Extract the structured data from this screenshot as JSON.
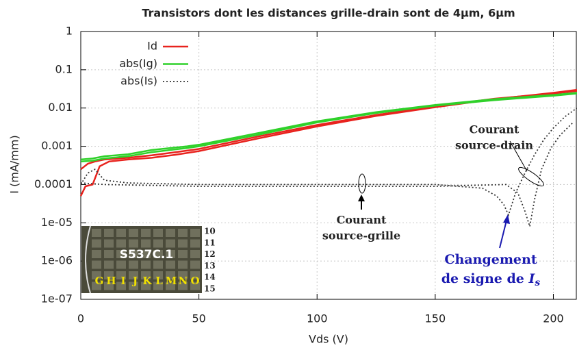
{
  "chart_data": {
    "type": "line",
    "title": "Transistors dont les distances grille-drain sont de 4µm, 6µm",
    "xlabel": "Vds (V)",
    "ylabel": "I  (mA/mm)",
    "xlim": [
      0,
      210
    ],
    "xticks": [
      0,
      50,
      100,
      150,
      200
    ],
    "ylim": [
      1e-07,
      1
    ],
    "log_y": true,
    "grid": true,
    "legend": "upper-left",
    "yticks": [
      1,
      0.1,
      0.01,
      0.001,
      0.0001,
      {
        "value": 1e-05,
        "label": "1e-05"
      },
      {
        "value": 1e-06,
        "label": "1e-06"
      },
      {
        "value": 1e-07,
        "label": "1e-07"
      }
    ],
    "series": [
      {
        "name": "Id",
        "color": "#e8231e",
        "dash": false,
        "curves": [
          {
            "x": [
              0,
              2,
              5,
              8,
              12,
              20,
              30,
              40,
              50,
              75,
              100,
              125,
              150,
              175,
              200,
              210
            ],
            "values": [
              5e-05,
              9e-05,
              0.0001,
              0.0003,
              0.0004,
              0.00045,
              0.0005,
              0.0006,
              0.00075,
              0.0016,
              0.0033,
              0.0062,
              0.0105,
              0.017,
              0.025,
              0.03
            ]
          },
          {
            "x": [
              0,
              3,
              6,
              10,
              20,
              30,
              40,
              50,
              75,
              100,
              125,
              150,
              175,
              200,
              210
            ],
            "values": [
              0.00025,
              0.00035,
              0.0004,
              0.00045,
              0.0005,
              0.00058,
              0.0007,
              0.00085,
              0.0018,
              0.0036,
              0.0066,
              0.011,
              0.0175,
              0.024,
              0.028
            ]
          }
        ]
      },
      {
        "name": "abs(Ig)",
        "color": "#2fd12a",
        "dash": false,
        "curves": [
          {
            "x": [
              0,
              5,
              10,
              20,
              30,
              45,
              50,
              75,
              100,
              125,
              150,
              175,
              200,
              210
            ],
            "values": [
              0.00045,
              0.00048,
              0.00055,
              0.00062,
              0.0008,
              0.001,
              0.0011,
              0.0022,
              0.0045,
              0.0078,
              0.012,
              0.017,
              0.022,
              0.025
            ]
          },
          {
            "x": [
              0,
              5,
              10,
              20,
              30,
              45,
              50,
              75,
              100,
              125,
              150,
              175,
              200,
              210
            ],
            "values": [
              0.0004,
              0.00042,
              0.00048,
              0.00055,
              0.0007,
              0.0009,
              0.001,
              0.002,
              0.0042,
              0.0074,
              0.0115,
              0.016,
              0.021,
              0.024
            ]
          }
        ]
      },
      {
        "name": "abs(Is)",
        "color": "#333333",
        "dash": true,
        "curves": [
          {
            "x": [
              0,
              3,
              6,
              10,
              20,
              50,
              100,
              150,
              170,
              176,
              179,
              181,
              184,
              188,
              192,
              196,
              200,
              205,
              210
            ],
            "values": [
              0.0001,
              0.0002,
              0.00025,
              0.00013,
              0.00011,
              0.0001,
              0.0001,
              0.0001,
              8e-05,
              5e-05,
              3e-05,
              1.6e-05,
              6e-05,
              0.0002,
              0.0006,
              0.0015,
              0.003,
              0.006,
              0.01
            ]
          },
          {
            "x": [
              0,
              10,
              50,
              100,
              150,
              180,
              185,
              188,
              190,
              192,
              195,
              199,
              203,
              208
            ],
            "values": [
              0.00011,
              0.0001,
              9e-05,
              9e-05,
              9e-05,
              0.0001,
              6e-05,
              2e-05,
              8e-06,
              4e-05,
              0.00025,
              0.0009,
              0.002,
              0.004
            ]
          }
        ]
      }
    ],
    "annotations": {
      "source_drain": [
        "Courant",
        "source-drain"
      ],
      "source_grille": [
        "Courant",
        "source-grille"
      ],
      "sign_change": {
        "lines": [
          "Changement",
          "de signe de "
        ],
        "symbol": "I",
        "subscript": "s"
      }
    },
    "inset": {
      "label": "S537C.1",
      "columns": [
        "G",
        "H",
        "I",
        "J",
        "K",
        "L",
        "M",
        "N",
        "O"
      ],
      "rows": [
        "10",
        "11",
        "12",
        "13",
        "14",
        "15"
      ]
    }
  }
}
